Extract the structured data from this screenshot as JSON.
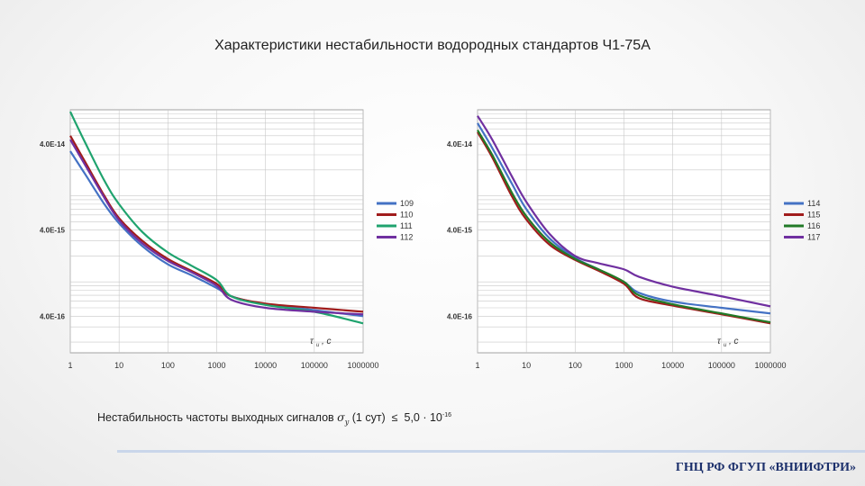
{
  "title": "Характеристики нестабильности водородных стандартов Ч1-75А",
  "note": {
    "prefix": "Нестабильность частоты выходных сигналов",
    "symbol": "σ",
    "symbol_sub": "y",
    "arg": "(1 сут)",
    "relation": "≤",
    "value": "5,0 · 10",
    "exponent": "-16"
  },
  "footer": {
    "org": "ГНЦ РФ ФГУП «ВНИИФТРИ»"
  },
  "chart_data": [
    {
      "type": "line",
      "x_scale": "log",
      "y_scale": "log",
      "xlim": [
        1,
        1000000
      ],
      "ylim": [
        1.5e-16,
        1e-13
      ],
      "x_ticks": [
        "1",
        "10",
        "100",
        "1000",
        "10000",
        "100000",
        "1000000"
      ],
      "y_ticks": [
        {
          "value": 4e-14,
          "label": "4.0E-14"
        },
        {
          "value": 4e-15,
          "label": "4.0E-15"
        },
        {
          "value": 4e-16,
          "label": "4.0E-16"
        }
      ],
      "tau_label": "τ",
      "tau_sub": "и",
      "tau_unit": ", с",
      "grid": true,
      "legend": "right",
      "series": [
        {
          "name": "109",
          "color": "#4472c4",
          "x": [
            1,
            2,
            5,
            10,
            30,
            100,
            300,
            1000,
            2000,
            10000,
            100000,
            1000000
          ],
          "y": [
            3.3e-14,
            1.8e-14,
            8e-15,
            4.8e-15,
            2.6e-15,
            1.6e-15,
            1.2e-15,
            8.5e-16,
            6.8e-16,
            5.5e-16,
            4.7e-16,
            4e-16
          ]
        },
        {
          "name": "110",
          "color": "#a01c1c",
          "x": [
            1,
            2,
            5,
            10,
            30,
            100,
            300,
            1000,
            2000,
            10000,
            100000,
            1000000
          ],
          "y": [
            5e-14,
            2.5e-14,
            1e-14,
            5.5e-15,
            3e-15,
            1.85e-15,
            1.35e-15,
            9.5e-16,
            6.8e-16,
            5.6e-16,
            5e-16,
            4.5e-16
          ]
        },
        {
          "name": "111",
          "color": "#1fa36e",
          "x": [
            1,
            2,
            5,
            10,
            30,
            100,
            300,
            1000,
            2000,
            10000,
            100000,
            1000000
          ],
          "y": [
            9.5e-14,
            4.2e-14,
            1.5e-14,
            8e-15,
            3.8e-15,
            2.2e-15,
            1.55e-15,
            1.05e-15,
            6.8e-16,
            5.4e-16,
            4.5e-16,
            3.3e-16
          ]
        },
        {
          "name": "112",
          "color": "#7030a0",
          "x": [
            1,
            2,
            5,
            10,
            30,
            100,
            300,
            1000,
            2000,
            10000,
            100000,
            1000000
          ],
          "y": [
            4.5e-14,
            2.3e-14,
            9.5e-15,
            5.2e-15,
            2.8e-15,
            1.75e-15,
            1.3e-15,
            9e-16,
            6.2e-16,
            5e-16,
            4.5e-16,
            4.2e-16
          ]
        }
      ]
    },
    {
      "type": "line",
      "x_scale": "log",
      "y_scale": "log",
      "xlim": [
        1,
        1000000
      ],
      "ylim": [
        1.5e-16,
        1e-13
      ],
      "x_ticks": [
        "1",
        "10",
        "100",
        "1000",
        "10000",
        "100000",
        "1000000"
      ],
      "y_ticks": [
        {
          "value": 4e-14,
          "label": "4.0E-14"
        },
        {
          "value": 4e-15,
          "label": "4.0E-15"
        },
        {
          "value": 4e-16,
          "label": "4.0E-16"
        }
      ],
      "tau_label": "τ",
      "tau_sub": "и",
      "tau_unit": ", с",
      "grid": true,
      "legend": "right",
      "series": [
        {
          "name": "114",
          "color": "#4472c4",
          "x": [
            1,
            2,
            5,
            10,
            30,
            100,
            300,
            1000,
            2000,
            10000,
            100000,
            1000000
          ],
          "y": [
            7e-14,
            3.6e-14,
            1.4e-14,
            7e-15,
            3.2e-15,
            1.9e-15,
            1.4e-15,
            1e-15,
            7.5e-16,
            5.9e-16,
            5e-16,
            4.3e-16
          ]
        },
        {
          "name": "115",
          "color": "#a01c1c",
          "x": [
            1,
            2,
            5,
            10,
            30,
            100,
            300,
            1000,
            2000,
            10000,
            100000,
            1000000
          ],
          "y": [
            5.5e-14,
            2.8e-14,
            1e-14,
            5.3e-15,
            2.7e-15,
            1.8e-15,
            1.35e-15,
            9.5e-16,
            6.5e-16,
            5.3e-16,
            4.2e-16,
            3.3e-16
          ]
        },
        {
          "name": "116",
          "color": "#217a27",
          "x": [
            1,
            2,
            5,
            10,
            30,
            100,
            300,
            1000,
            2000,
            10000,
            100000,
            1000000
          ],
          "y": [
            5.8e-14,
            3e-14,
            1.1e-14,
            5.8e-15,
            2.9e-15,
            1.85e-15,
            1.4e-15,
            1e-15,
            7e-16,
            5.5e-16,
            4.3e-16,
            3.4e-16
          ]
        },
        {
          "name": "117",
          "color": "#7030a0",
          "x": [
            1,
            2,
            5,
            10,
            30,
            100,
            300,
            1000,
            2000,
            10000,
            100000,
            1000000
          ],
          "y": [
            8.5e-14,
            4.5e-14,
            1.7e-14,
            8.5e-15,
            3.6e-15,
            2e-15,
            1.65e-15,
            1.4e-15,
            1.15e-15,
            8.8e-16,
            6.8e-16,
            5.2e-16
          ]
        }
      ]
    }
  ]
}
